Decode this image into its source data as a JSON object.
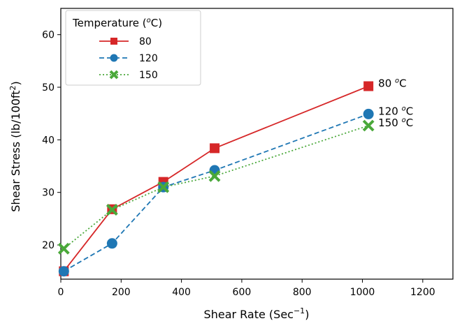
{
  "chart_data": {
    "type": "line",
    "title": "",
    "xlabel": "Shear Rate (Sec",
    "xlabel_sup": "−1",
    "xlabel_end": ")",
    "ylabel": "Shear Stress (lb/100ft",
    "ylabel_sup": "2",
    "ylabel_end": ")",
    "xlim": [
      0,
      1300
    ],
    "ylim": [
      13.5,
      65
    ],
    "xticks": [
      0,
      200,
      400,
      600,
      800,
      1000,
      1200
    ],
    "yticks": [
      20,
      30,
      40,
      50,
      60
    ],
    "grid": false,
    "legend": {
      "title": "Temperature (",
      "title_sup": "o",
      "title_end": "C)",
      "position": "top-left"
    },
    "series": [
      {
        "name": "80",
        "color": "#d62728",
        "marker": "square",
        "linestyle": "solid",
        "x": [
          10,
          170,
          340,
          510,
          1020
        ],
        "y": [
          15.0,
          26.8,
          32.0,
          38.4,
          50.2
        ],
        "annotation": {
          "text": "80 ",
          "sup": "o",
          "end": "C"
        }
      },
      {
        "name": "120",
        "color": "#1f77b4",
        "marker": "circle",
        "linestyle": "dashed",
        "x": [
          10,
          170,
          340,
          510,
          1020
        ],
        "y": [
          15.0,
          20.3,
          31.0,
          34.2,
          44.9
        ],
        "annotation": {
          "text": "120 ",
          "sup": "o",
          "end": "C"
        }
      },
      {
        "name": "150",
        "color": "#4aa83a",
        "marker": "x",
        "linestyle": "dotted",
        "x": [
          10,
          170,
          340,
          510,
          1020
        ],
        "y": [
          19.3,
          26.7,
          31.0,
          33.1,
          42.7
        ],
        "annotation": {
          "text": "150 ",
          "sup": "o",
          "end": "C"
        }
      }
    ]
  }
}
